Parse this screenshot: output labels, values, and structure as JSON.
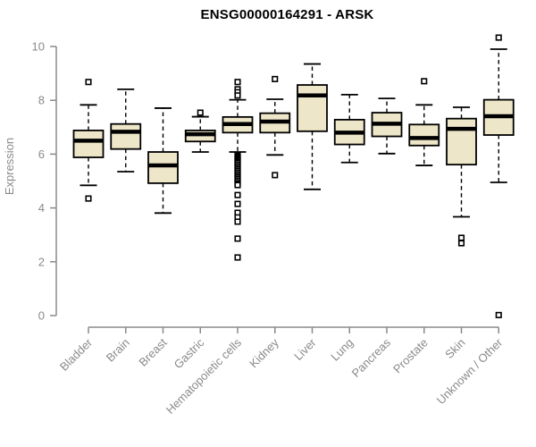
{
  "chart_data": {
    "type": "boxplot",
    "title": "ENSG00000164291 - ARSK",
    "ylabel": "Expression",
    "xlabel": "",
    "ylim": [
      0,
      10
    ],
    "yticks": [
      0,
      2,
      4,
      6,
      8,
      10
    ],
    "grid": false,
    "legend": "none",
    "categories": [
      "Bladder",
      "Brain",
      "Breast",
      "Gastric",
      "Hematopoietic cells",
      "Kidney",
      "Liver",
      "Lung",
      "Pancreas",
      "Prostate",
      "Skin",
      "Unknown / Other"
    ],
    "series": [
      {
        "category": "Bladder",
        "whisker_low": 4.84,
        "q1": 5.88,
        "median": 6.5,
        "q3": 6.88,
        "whisker_high": 7.83,
        "outliers": [
          8.68,
          4.35
        ]
      },
      {
        "category": "Brain",
        "whisker_low": 5.35,
        "q1": 6.19,
        "median": 6.83,
        "q3": 7.12,
        "whisker_high": 8.41,
        "outliers": []
      },
      {
        "category": "Breast",
        "whisker_low": 3.81,
        "q1": 4.92,
        "median": 5.58,
        "q3": 6.08,
        "whisker_high": 7.71,
        "outliers": []
      },
      {
        "category": "Gastric",
        "whisker_low": 6.08,
        "q1": 6.47,
        "median": 6.74,
        "q3": 6.88,
        "whisker_high": 7.39,
        "outliers": [
          7.54
        ]
      },
      {
        "category": "Hematopoietic cells",
        "whisker_low": 6.08,
        "q1": 6.8,
        "median": 7.12,
        "q3": 7.38,
        "whisker_high": 8.02,
        "outliers": [
          8.68,
          8.41,
          8.3,
          8.18,
          5.98,
          5.93,
          5.88,
          5.83,
          5.78,
          5.73,
          5.68,
          5.62,
          5.56,
          5.5,
          5.44,
          5.38,
          5.32,
          5.26,
          5.2,
          5.14,
          5.08,
          5.02,
          4.96,
          4.9,
          4.85,
          4.48,
          4.15,
          3.82,
          3.65,
          3.49,
          2.86,
          2.16
        ]
      },
      {
        "category": "Kidney",
        "whisker_low": 5.97,
        "q1": 6.8,
        "median": 7.21,
        "q3": 7.52,
        "whisker_high": 8.04,
        "outliers": [
          8.79,
          5.22
        ]
      },
      {
        "category": "Liver",
        "whisker_low": 4.69,
        "q1": 6.85,
        "median": 8.18,
        "q3": 8.57,
        "whisker_high": 9.35,
        "outliers": []
      },
      {
        "category": "Lung",
        "whisker_low": 5.69,
        "q1": 6.36,
        "median": 6.8,
        "q3": 7.28,
        "whisker_high": 8.21,
        "outliers": []
      },
      {
        "category": "Pancreas",
        "whisker_low": 6.02,
        "q1": 6.66,
        "median": 7.13,
        "q3": 7.54,
        "whisker_high": 8.07,
        "outliers": []
      },
      {
        "category": "Prostate",
        "whisker_low": 5.58,
        "q1": 6.32,
        "median": 6.6,
        "q3": 7.1,
        "whisker_high": 7.83,
        "outliers": [
          8.71
        ]
      },
      {
        "category": "Skin",
        "whisker_low": 3.67,
        "q1": 5.61,
        "median": 6.94,
        "q3": 7.32,
        "whisker_high": 7.74,
        "outliers": [
          2.89,
          2.69
        ]
      },
      {
        "category": "Unknown / Other",
        "whisker_low": 4.95,
        "q1": 6.71,
        "median": 7.41,
        "q3": 8.02,
        "whisker_high": 9.9,
        "outliers": [
          10.33,
          0.02
        ]
      }
    ],
    "style": {
      "box_fill": "#EDE6C8",
      "box_border": "#000000",
      "median_color": "#000000",
      "whisker_style": "dashed",
      "outlier_symbol": "open-square",
      "axis_color": "#8a8a8a",
      "background": "#FFFFFF"
    }
  }
}
